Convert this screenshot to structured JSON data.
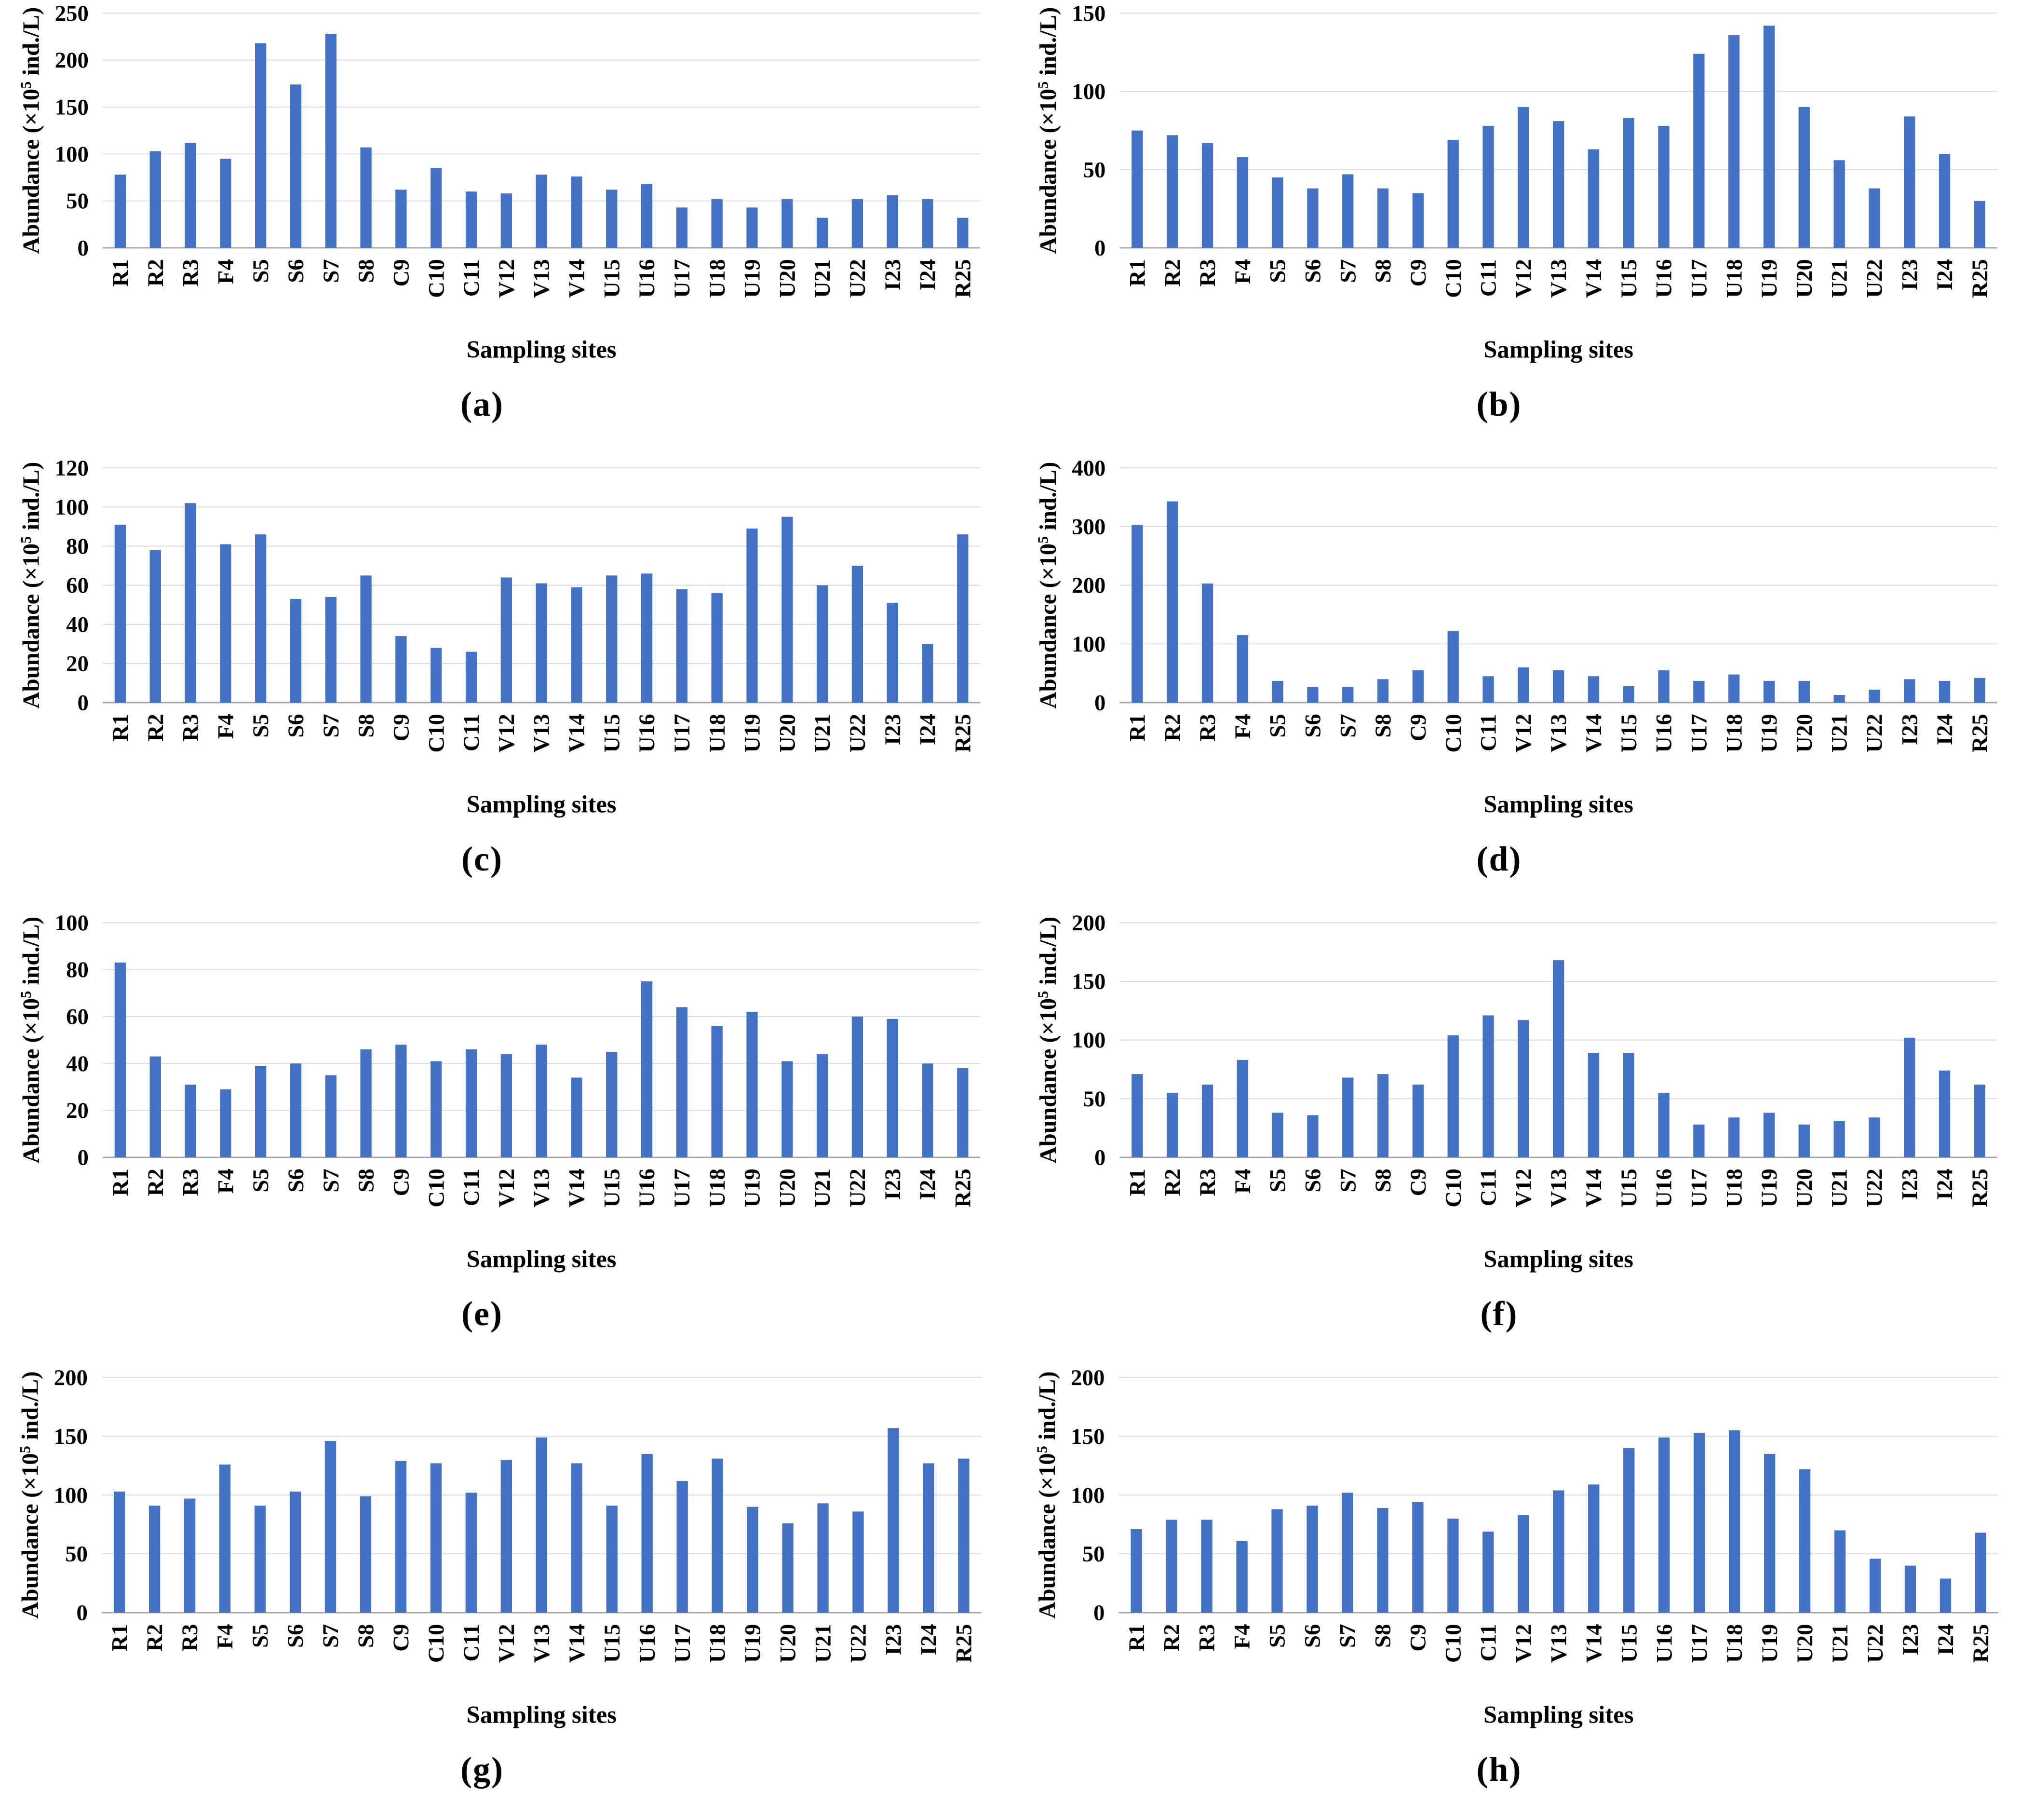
{
  "chart_data": {
    "type": "bar",
    "grid": true,
    "legend": false,
    "bar_color": "#4472C4",
    "grid_color": "#D9D9D9",
    "axis_color": "#A6A6A6",
    "xlabel": "Sampling sites",
    "ylabel": {
      "prefix": "Abundance (×10",
      "superscript": "5",
      "suffix": " ind./L)"
    },
    "categories": [
      "R1",
      "R2",
      "R3",
      "F4",
      "S5",
      "S6",
      "S7",
      "S8",
      "C9",
      "C10",
      "C11",
      "V12",
      "V13",
      "V14",
      "U15",
      "U16",
      "U17",
      "U18",
      "U19",
      "U20",
      "U21",
      "U22",
      "I23",
      "I24",
      "R25"
    ],
    "charts": [
      {
        "id": "a",
        "caption": "(a)",
        "ylim": [
          0,
          250
        ],
        "ytick_step": 50,
        "values": [
          78,
          103,
          112,
          95,
          218,
          174,
          228,
          107,
          62,
          85,
          60,
          58,
          78,
          76,
          62,
          68,
          43,
          52,
          43,
          52,
          32,
          52,
          56,
          52,
          32
        ]
      },
      {
        "id": "b",
        "caption": "(b)",
        "ylim": [
          0,
          150
        ],
        "ytick_step": 50,
        "values": [
          75,
          72,
          67,
          58,
          45,
          38,
          47,
          38,
          35,
          69,
          78,
          90,
          81,
          63,
          83,
          78,
          124,
          136,
          142,
          90,
          56,
          38,
          84,
          60,
          30
        ]
      },
      {
        "id": "c",
        "caption": "(c)",
        "ylim": [
          0,
          120
        ],
        "ytick_step": 20,
        "values": [
          91,
          78,
          102,
          81,
          86,
          53,
          54,
          65,
          34,
          28,
          26,
          64,
          61,
          59,
          65,
          66,
          58,
          56,
          89,
          95,
          60,
          70,
          51,
          30,
          86
        ]
      },
      {
        "id": "d",
        "caption": "(d)",
        "ylim": [
          0,
          400
        ],
        "ytick_step": 100,
        "values": [
          303,
          343,
          203,
          115,
          37,
          27,
          27,
          40,
          55,
          122,
          45,
          60,
          55,
          45,
          28,
          55,
          37,
          48,
          37,
          37,
          13,
          22,
          40,
          37,
          42
        ]
      },
      {
        "id": "e",
        "caption": "(e)",
        "ylim": [
          0,
          100
        ],
        "ytick_step": 20,
        "values": [
          83,
          43,
          31,
          29,
          39,
          40,
          35,
          46,
          48,
          41,
          46,
          44,
          48,
          34,
          45,
          75,
          64,
          56,
          62,
          41,
          44,
          60,
          59,
          40,
          38
        ]
      },
      {
        "id": "f",
        "caption": "(f)",
        "ylim": [
          0,
          200
        ],
        "ytick_step": 50,
        "values": [
          71,
          55,
          62,
          83,
          38,
          36,
          68,
          71,
          62,
          104,
          121,
          117,
          168,
          89,
          89,
          55,
          28,
          34,
          38,
          28,
          31,
          34,
          102,
          74,
          62
        ]
      },
      {
        "id": "g",
        "caption": "(g)",
        "ylim": [
          0,
          200
        ],
        "ytick_step": 50,
        "values": [
          103,
          91,
          97,
          126,
          91,
          103,
          146,
          99,
          129,
          127,
          102,
          130,
          149,
          127,
          91,
          135,
          112,
          131,
          90,
          76,
          93,
          86,
          157,
          127,
          131
        ]
      },
      {
        "id": "h",
        "caption": "(h)",
        "ylim": [
          0,
          200
        ],
        "ytick_step": 50,
        "values": [
          71,
          79,
          79,
          61,
          88,
          91,
          102,
          89,
          94,
          80,
          69,
          83,
          104,
          109,
          140,
          149,
          153,
          155,
          135,
          122,
          70,
          46,
          40,
          29,
          68
        ]
      }
    ]
  }
}
